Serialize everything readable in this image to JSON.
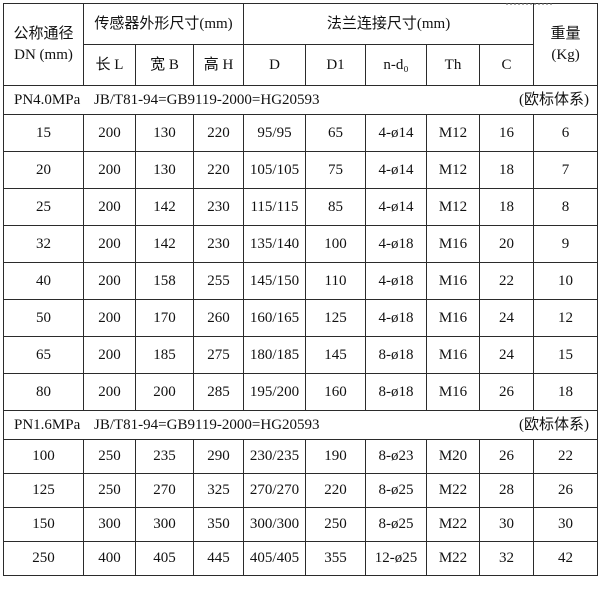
{
  "page": {
    "background": "#ffffff",
    "border_color": "#2b2b2b",
    "text_color": "#111111"
  },
  "table": {
    "header": {
      "dn_line1": "公称通径",
      "dn_line2": "DN (mm)",
      "sensor_group": "传感器外形尺寸(mm)",
      "flange_group": "法兰连接尺寸(mm)",
      "weight_line1": "重量",
      "weight_line2": "(Kg)",
      "sub_cols": [
        "长 L",
        "宽 B",
        "高 H",
        "D",
        "D1",
        "n-d₀",
        "Th",
        "C"
      ]
    },
    "sections": [
      {
        "pressure": "PN4.0MPa",
        "standard": "JB/T81-94=GB9119-2000=HG20593",
        "note": "(欧标体系)",
        "rows": [
          [
            "15",
            "200",
            "130",
            "220",
            "95/95",
            "65",
            "4-ø14",
            "M12",
            "16",
            "6"
          ],
          [
            "20",
            "200",
            "130",
            "220",
            "105/105",
            "75",
            "4-ø14",
            "M12",
            "18",
            "7"
          ],
          [
            "25",
            "200",
            "142",
            "230",
            "115/115",
            "85",
            "4-ø14",
            "M12",
            "18",
            "8"
          ],
          [
            "32",
            "200",
            "142",
            "230",
            "135/140",
            "100",
            "4-ø18",
            "M16",
            "20",
            "9"
          ],
          [
            "40",
            "200",
            "158",
            "255",
            "145/150",
            "110",
            "4-ø18",
            "M16",
            "22",
            "10"
          ],
          [
            "50",
            "200",
            "170",
            "260",
            "160/165",
            "125",
            "4-ø18",
            "M16",
            "24",
            "12"
          ],
          [
            "65",
            "200",
            "185",
            "275",
            "180/185",
            "145",
            "8-ø18",
            "M16",
            "24",
            "15"
          ],
          [
            "80",
            "200",
            "200",
            "285",
            "195/200",
            "160",
            "8-ø18",
            "M16",
            "26",
            "18"
          ]
        ]
      },
      {
        "pressure": "PN1.6MPa",
        "standard": "JB/T81-94=GB9119-2000=HG20593",
        "note": "(欧标体系)",
        "rows": [
          [
            "100",
            "250",
            "235",
            "290",
            "230/235",
            "190",
            "8-ø23",
            "M20",
            "26",
            "22"
          ],
          [
            "125",
            "250",
            "270",
            "325",
            "270/270",
            "220",
            "8-ø25",
            "M22",
            "28",
            "26"
          ],
          [
            "150",
            "300",
            "300",
            "350",
            "300/300",
            "250",
            "8-ø25",
            "M22",
            "30",
            "30"
          ],
          [
            "250",
            "400",
            "405",
            "445",
            "405/405",
            "355",
            "12-ø25",
            "M22",
            "32",
            "42"
          ]
        ]
      }
    ]
  }
}
